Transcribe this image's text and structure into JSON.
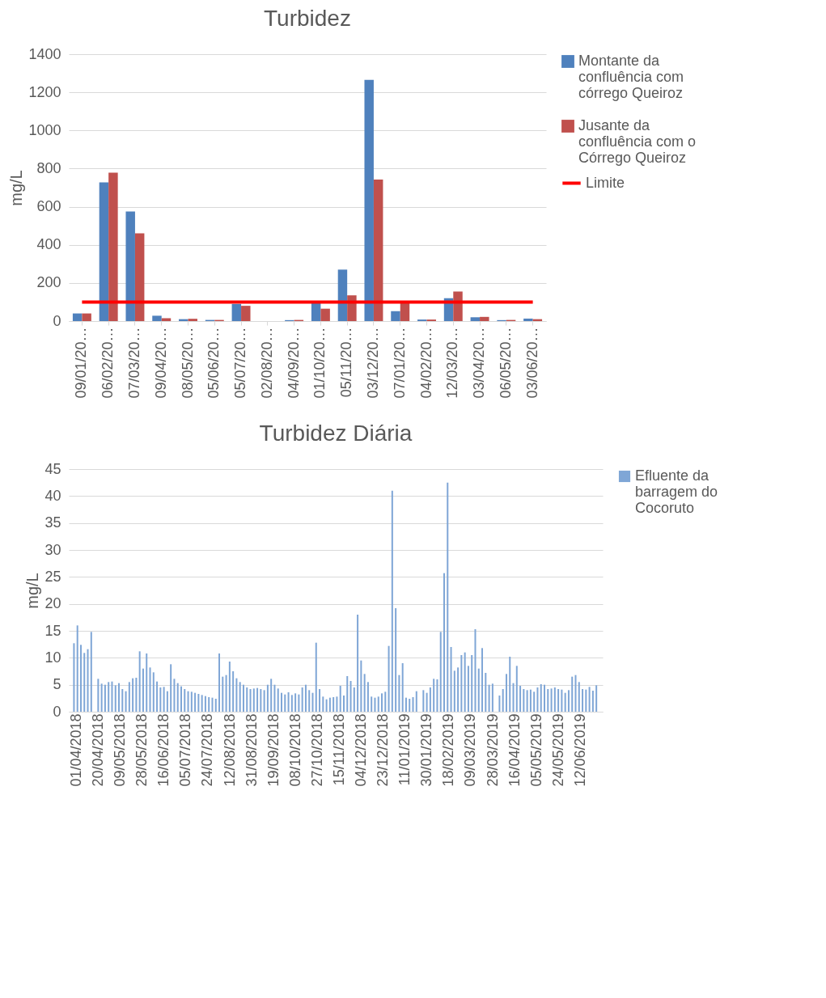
{
  "chart_data": [
    {
      "type": "bar",
      "title": "Turbidez",
      "ylabel": "mg/L",
      "categories": [
        "09/01/20…",
        "06/02/20…",
        "07/03/20…",
        "09/04/20…",
        "08/05/20…",
        "05/06/20…",
        "05/07/20…",
        "02/08/20…",
        "04/09/20…",
        "01/10/20…",
        "05/11/20…",
        "03/12/20…",
        "07/01/20…",
        "04/02/20…",
        "12/03/20…",
        "03/04/20…",
        "06/05/20…",
        "03/06/20…"
      ],
      "series": [
        {
          "name": "Montante da confluência com córrego Queiroz",
          "color": "#4f81bd",
          "values": [
            40,
            728,
            575,
            28,
            10,
            6,
            90,
            null,
            5,
            95,
            270,
            1265,
            52,
            8,
            120,
            20,
            5,
            13
          ]
        },
        {
          "name": "Jusante da confluência com o Córrego Queiroz",
          "color": "#c0504d",
          "values": [
            40,
            778,
            460,
            15,
            12,
            6,
            80,
            null,
            6,
            65,
            135,
            742,
            100,
            8,
            155,
            22,
            6,
            10
          ]
        },
        {
          "name": "Limite",
          "type": "line",
          "color": "#ff0000",
          "values": [
            100,
            100,
            100,
            100,
            100,
            100,
            100,
            100,
            100,
            100,
            100,
            100,
            100,
            100,
            100,
            100,
            100,
            100
          ]
        }
      ],
      "ylim": [
        0,
        1400
      ],
      "yticks": [
        0,
        200,
        400,
        600,
        800,
        1000,
        1200,
        1400
      ],
      "grid": "y",
      "legend": "right"
    },
    {
      "type": "bar",
      "title": "Turbidez Diária",
      "ylabel": "mg/L",
      "x": [
        "2018-04-01",
        "2018-04-04",
        "2018-04-07",
        "2018-04-10",
        "2018-04-13",
        "2018-04-16",
        "2018-04-19",
        "2018-04-22",
        "2018-04-25",
        "2018-04-28",
        "2018-05-01",
        "2018-05-04",
        "2018-05-07",
        "2018-05-10",
        "2018-05-13",
        "2018-05-16",
        "2018-05-19",
        "2018-05-22",
        "2018-05-25",
        "2018-05-28",
        "2018-05-31",
        "2018-06-03",
        "2018-06-06",
        "2018-06-09",
        "2018-06-12",
        "2018-06-15",
        "2018-06-18",
        "2018-06-21",
        "2018-06-24",
        "2018-06-27",
        "2018-06-30",
        "2018-07-03",
        "2018-07-06",
        "2018-07-09",
        "2018-07-12",
        "2018-07-15",
        "2018-07-18",
        "2018-07-21",
        "2018-07-24",
        "2018-07-27",
        "2018-07-30",
        "2018-08-02",
        "2018-08-05",
        "2018-08-08",
        "2018-08-11",
        "2018-08-14",
        "2018-08-17",
        "2018-08-20",
        "2018-08-23",
        "2018-08-26",
        "2018-08-29",
        "2018-09-01",
        "2018-09-04",
        "2018-09-07",
        "2018-09-10",
        "2018-09-13",
        "2018-09-16",
        "2018-09-19",
        "2018-09-22",
        "2018-09-25",
        "2018-09-28",
        "2018-10-01",
        "2018-10-04",
        "2018-10-07",
        "2018-10-10",
        "2018-10-13",
        "2018-10-16",
        "2018-10-19",
        "2018-10-22",
        "2018-10-25",
        "2018-10-28",
        "2018-10-31",
        "2018-11-03",
        "2018-11-06",
        "2018-11-09",
        "2018-11-12",
        "2018-11-15",
        "2018-11-18",
        "2018-11-21",
        "2018-11-24",
        "2018-11-27",
        "2018-11-30",
        "2018-12-03",
        "2018-12-06",
        "2018-12-09",
        "2018-12-12",
        "2018-12-15",
        "2018-12-18",
        "2018-12-21",
        "2018-12-24",
        "2018-12-27",
        "2018-12-30",
        "2019-01-02",
        "2019-01-05",
        "2019-01-08",
        "2019-01-11",
        "2019-01-14",
        "2019-01-17",
        "2019-01-20",
        "2019-01-23",
        "2019-01-26",
        "2019-01-29",
        "2019-02-01",
        "2019-02-04",
        "2019-02-07",
        "2019-02-10",
        "2019-02-13",
        "2019-02-16",
        "2019-02-19",
        "2019-02-22",
        "2019-02-25",
        "2019-02-28",
        "2019-03-03",
        "2019-03-06",
        "2019-03-09",
        "2019-03-12",
        "2019-03-15",
        "2019-03-18",
        "2019-03-21",
        "2019-03-24",
        "2019-03-27",
        "2019-03-30",
        "2019-04-02",
        "2019-04-05",
        "2019-04-08",
        "2019-04-11",
        "2019-04-14",
        "2019-04-17",
        "2019-04-20",
        "2019-04-23",
        "2019-04-26",
        "2019-04-29",
        "2019-05-02",
        "2019-05-05",
        "2019-05-08",
        "2019-05-11",
        "2019-05-14",
        "2019-05-17",
        "2019-05-20",
        "2019-05-23",
        "2019-05-26",
        "2019-05-29",
        "2019-06-01",
        "2019-06-04",
        "2019-06-07",
        "2019-06-10",
        "2019-06-13",
        "2019-06-16",
        "2019-06-19",
        "2019-06-22",
        "2019-06-25",
        "2019-06-28"
      ],
      "series": [
        {
          "name": "Efluente da barragem do Cocoruto",
          "color": "#7fa6d6",
          "values": [
            12.7,
            16,
            12.4,
            10.9,
            11.6,
            14.8,
            null,
            6.1,
            5.2,
            5,
            5.5,
            5.6,
            4.9,
            5.3,
            4.2,
            3.8,
            5.5,
            6.2,
            6.3,
            11.2,
            8,
            10.8,
            8.2,
            7.3,
            5.6,
            4.5,
            4.6,
            3.8,
            8.8,
            6.1,
            5.3,
            4.7,
            4.2,
            3.8,
            3.7,
            3.5,
            3.3,
            3.1,
            2.9,
            2.7,
            2.6,
            2.4,
            10.8,
            6.5,
            6.8,
            9.3,
            7.5,
            6.2,
            5.5,
            5,
            4.5,
            4.2,
            4.3,
            4.4,
            4.2,
            4,
            5,
            6.1,
            5,
            4.3,
            3.5,
            3.2,
            3.6,
            3.1,
            3.4,
            3.2,
            4.5,
            5,
            4,
            3.5,
            12.8,
            4.2,
            2.8,
            2.3,
            2.6,
            2.7,
            2.8,
            4.8,
            3,
            6.6,
            5.7,
            4.5,
            18,
            9.5,
            7,
            5.5,
            2.8,
            2.6,
            2.8,
            3.4,
            3.7,
            12.2,
            41,
            19.2,
            6.8,
            9,
            2.6,
            2.4,
            2.7,
            3.8,
            null,
            4,
            3.5,
            4.5,
            6.1,
            6,
            14.8,
            25.7,
            42.5,
            12,
            7.6,
            8.2,
            10.5,
            11,
            8.5,
            10.5,
            15.3,
            8,
            11.8,
            7.2,
            5,
            5.2,
            null,
            3,
            4.2,
            7,
            10.2,
            5.3,
            8.5,
            4.8,
            4.2,
            4,
            4.1,
            3.7,
            4.5,
            5.1,
            5,
            4.2,
            4.3,
            4.5,
            4.2,
            4.1,
            3.5,
            4,
            6.5,
            6.8,
            5.5,
            4.2,
            4.1,
            4.6,
            3.9,
            4.9
          ]
        }
      ],
      "xlim": [
        "2018-03-31",
        "2019-06-30"
      ],
      "xticks": [
        {
          "value": "2018-04-01",
          "label": "01/04/2018"
        },
        {
          "value": "2018-04-20",
          "label": "20/04/2018"
        },
        {
          "value": "2018-05-09",
          "label": "09/05/2018"
        },
        {
          "value": "2018-05-28",
          "label": "28/05/2018"
        },
        {
          "value": "2018-06-16",
          "label": "16/06/2018"
        },
        {
          "value": "2018-07-05",
          "label": "05/07/2018"
        },
        {
          "value": "2018-07-24",
          "label": "24/07/2018"
        },
        {
          "value": "2018-08-12",
          "label": "12/08/2018"
        },
        {
          "value": "2018-08-31",
          "label": "31/08/2018"
        },
        {
          "value": "2018-09-19",
          "label": "19/09/2018"
        },
        {
          "value": "2018-10-08",
          "label": "08/10/2018"
        },
        {
          "value": "2018-10-27",
          "label": "27/10/2018"
        },
        {
          "value": "2018-11-15",
          "label": "15/11/2018"
        },
        {
          "value": "2018-12-04",
          "label": "04/12/2018"
        },
        {
          "value": "2018-12-23",
          "label": "23/12/2018"
        },
        {
          "value": "2019-01-11",
          "label": "11/01/2019"
        },
        {
          "value": "2019-01-30",
          "label": "30/01/2019"
        },
        {
          "value": "2019-02-18",
          "label": "18/02/2019"
        },
        {
          "value": "2019-03-09",
          "label": "09/03/2019"
        },
        {
          "value": "2019-03-28",
          "label": "28/03/2019"
        },
        {
          "value": "2019-04-16",
          "label": "16/04/2019"
        },
        {
          "value": "2019-05-05",
          "label": "05/05/2019"
        },
        {
          "value": "2019-05-24",
          "label": "24/05/2019"
        },
        {
          "value": "2019-06-12",
          "label": "12/06/2019"
        }
      ],
      "ylim": [
        0,
        45
      ],
      "yticks": [
        0,
        5,
        10,
        15,
        20,
        25,
        30,
        35,
        40,
        45
      ],
      "grid": "y",
      "legend": "right"
    }
  ]
}
